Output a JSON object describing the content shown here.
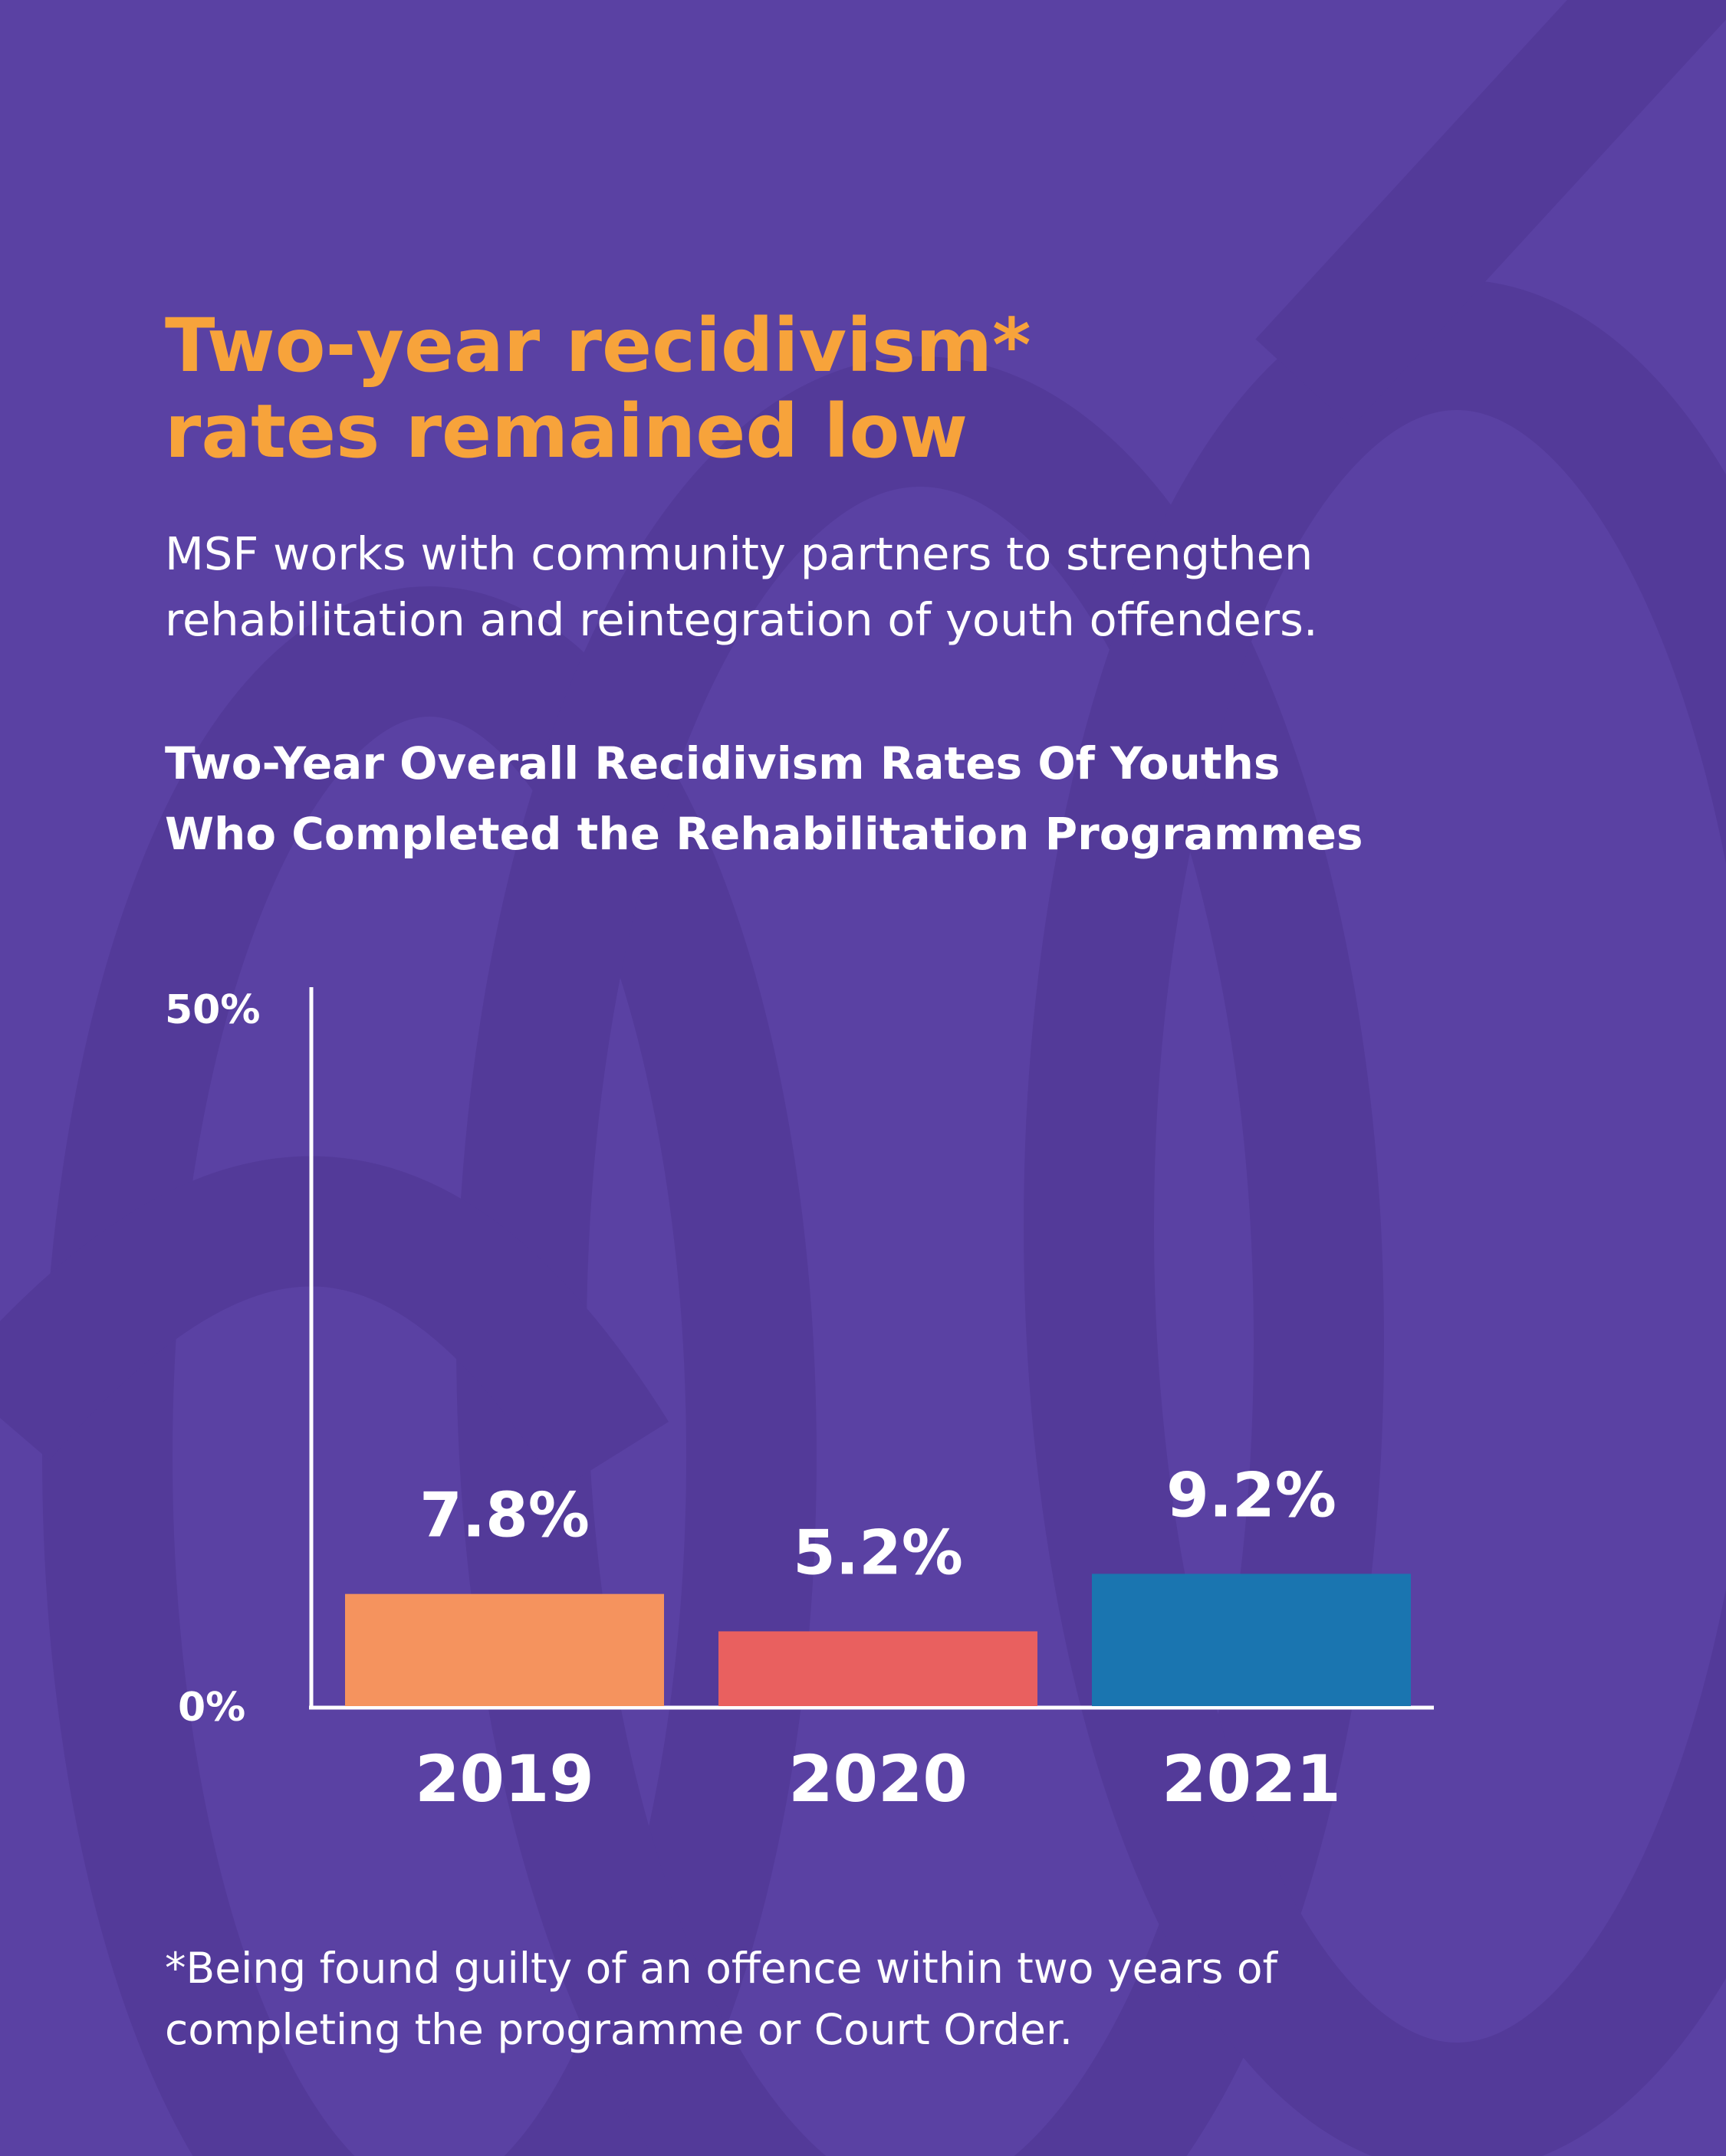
{
  "headline": {
    "line1": "Two-year recidivism*",
    "line2": "rates remained low"
  },
  "intro": {
    "line1": "MSF works with community partners to strengthen",
    "line2": "rehabilitation and reintegration of youth offenders."
  },
  "chart_data": {
    "type": "bar",
    "title_lines": [
      "Two-Year Overall Recidivism Rates Of Youths",
      "Who Completed the Rehabilitation Programmes"
    ],
    "categories": [
      "2019",
      "2020",
      "2021"
    ],
    "values": [
      7.8,
      5.2,
      9.2
    ],
    "value_labels": [
      "7.8%",
      "5.2%",
      "9.2%"
    ],
    "colors": [
      "#f5935e",
      "#e9605f",
      "#1a75b0"
    ],
    "ylim": [
      0,
      50
    ],
    "y_tick_labels": [
      "0%",
      "50%"
    ],
    "grid": false
  },
  "footnote": {
    "line1": "*Being found guilty of an offence within two years of",
    "line2": "completing the programme or Court Order."
  },
  "colors": {
    "background": "#5a41a3",
    "headline": "#f7a33b",
    "text": "#ffffff"
  }
}
